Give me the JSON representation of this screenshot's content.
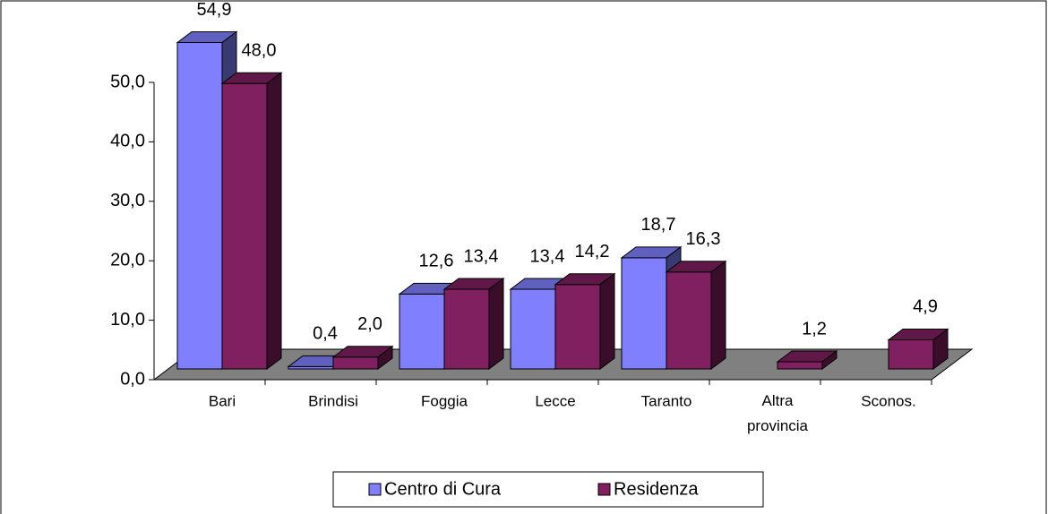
{
  "chart_data": {
    "type": "bar3d",
    "categories": [
      "Bari",
      "Brindisi",
      "Foggia",
      "Lecce",
      "Taranto",
      "Altra provincia",
      "Sconos."
    ],
    "series": [
      {
        "name": "Centro di Cura",
        "color": "#8080ff",
        "values": [
          54.9,
          0.4,
          12.6,
          13.4,
          18.7,
          null,
          null
        ],
        "value_labels": [
          "54,9",
          "0,4",
          "12,6",
          "13,4",
          "18,7",
          null,
          null
        ]
      },
      {
        "name": "Residenza",
        "color": "#802060",
        "values": [
          48.0,
          2.0,
          13.4,
          14.2,
          16.3,
          1.2,
          4.9
        ],
        "value_labels": [
          "48,0",
          "2,0",
          "13,4",
          "14,2",
          "16,3",
          "1,2",
          "4,9"
        ]
      }
    ],
    "ylim": [
      0,
      50
    ],
    "yticks": [
      {
        "value": 0,
        "label": "0,0"
      },
      {
        "value": 10,
        "label": "10,0"
      },
      {
        "value": 20,
        "label": "20,0"
      },
      {
        "value": 30,
        "label": "30,0"
      },
      {
        "value": 40,
        "label": "40,0"
      },
      {
        "value": 50,
        "label": "50,0"
      }
    ],
    "legend": "bottom"
  }
}
